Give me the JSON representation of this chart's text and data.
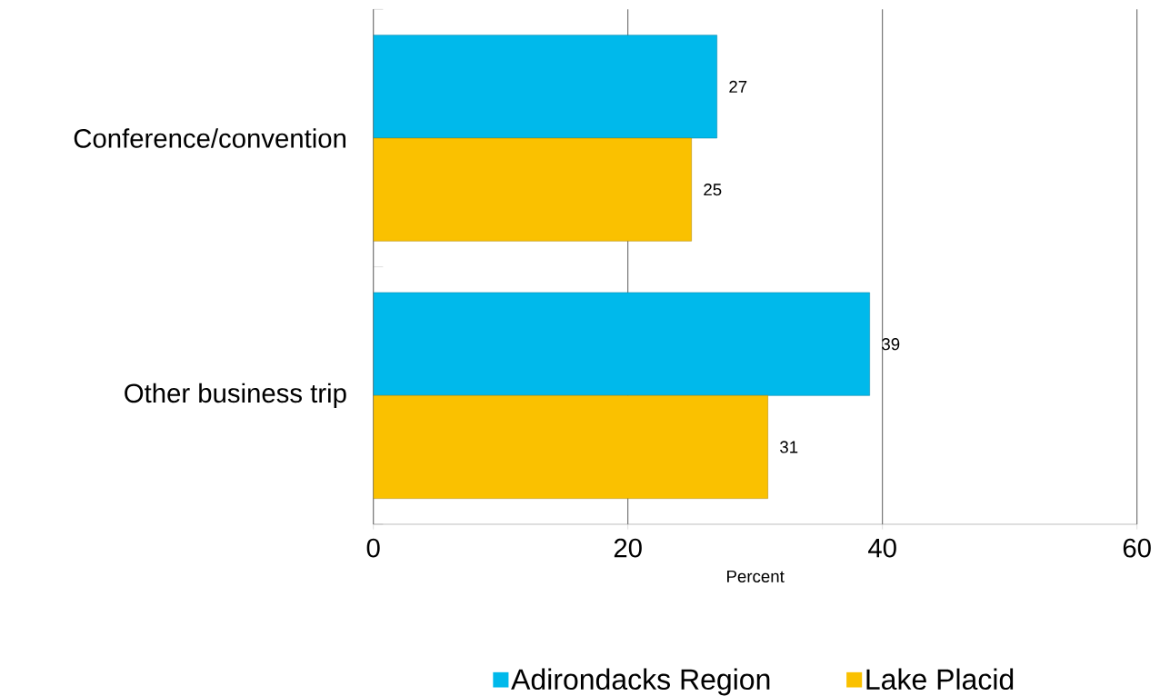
{
  "chart_data": {
    "type": "bar",
    "orientation": "horizontal",
    "xlabel": "Percent",
    "categories": [
      "Conference/convention",
      "Other business trip"
    ],
    "series": [
      {
        "name": "Adirondacks Region",
        "color": "#00b9eb",
        "values": [
          27,
          39
        ]
      },
      {
        "name": "Lake Placid",
        "color": "#fac100",
        "values": [
          25,
          31
        ]
      }
    ],
    "xlim": [
      0,
      60
    ],
    "xticks": [
      0,
      20,
      40,
      60
    ],
    "grid": "x",
    "legend": "bottom",
    "data_labels": true
  }
}
